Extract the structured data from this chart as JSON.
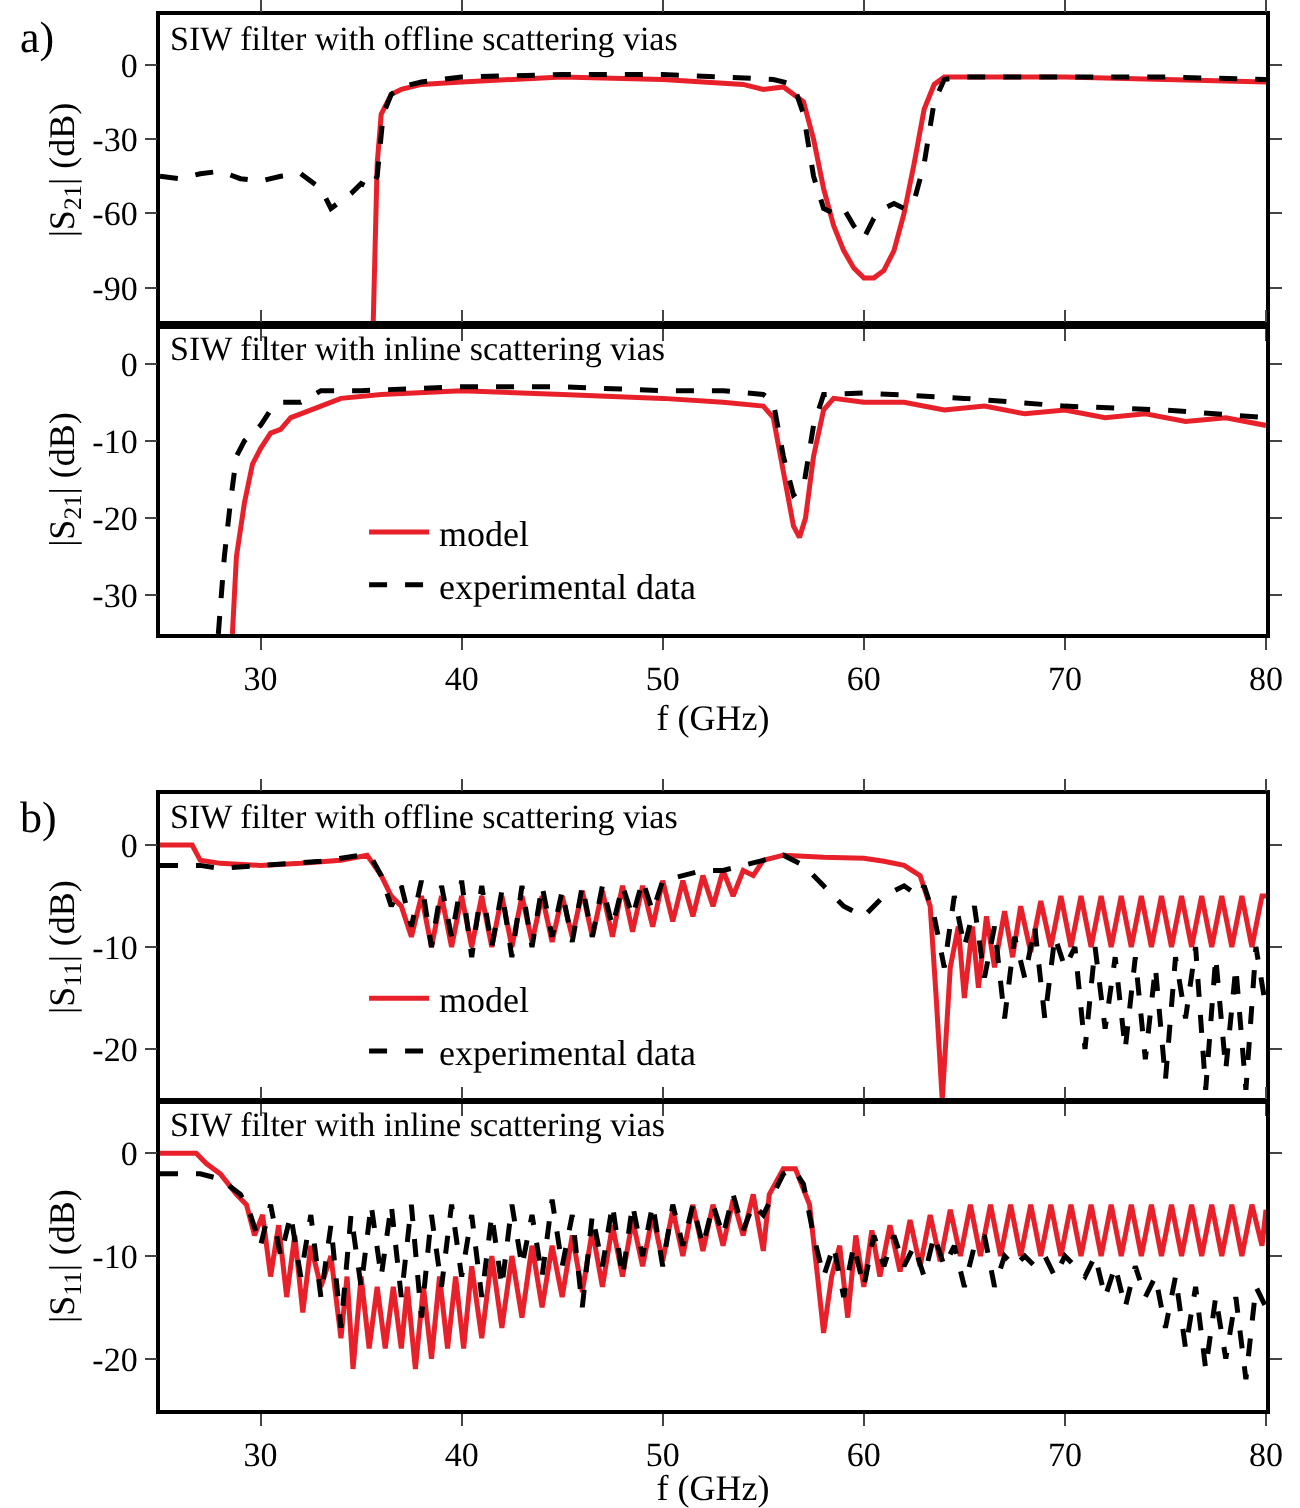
{
  "chart_data": [
    {
      "type": "line",
      "title": "SIW filter with offline scattering vias",
      "ylabel": "|S$_{21}$| (dB)",
      "annotations": [
        "a)"
      ],
      "xlim": [
        25,
        80
      ],
      "ylim": [
        -105,
        20
      ],
      "xticks": [
        30,
        40,
        50,
        60,
        70,
        80
      ],
      "yticks": [
        -90,
        -60,
        -30,
        0
      ],
      "tick_labels": "y",
      "grid": false,
      "legend": false,
      "series": [
        {
          "color": "#e8202a",
          "line_style": "solid",
          "x": [
            35.6,
            35.8,
            36.0,
            36.5,
            37,
            38,
            40,
            45,
            50,
            54,
            55,
            56,
            57,
            57.5,
            58,
            58.5,
            59,
            59.5,
            60,
            60.5,
            61,
            61.5,
            62,
            62.5,
            63,
            63.5,
            64,
            65,
            70,
            75,
            80
          ],
          "values": [
            -105,
            -40,
            -20,
            -12,
            -10,
            -8,
            -7,
            -5,
            -6,
            -8,
            -10,
            -9,
            -15,
            -30,
            -50,
            -65,
            -75,
            -82,
            -86,
            -86,
            -83,
            -75,
            -60,
            -40,
            -18,
            -8,
            -5,
            -5,
            -5,
            -6,
            -7
          ]
        },
        {
          "color": "#000000",
          "line_style": "dashed",
          "x": [
            25,
            26,
            27,
            28,
            29,
            30,
            31,
            32,
            33,
            33.5,
            34,
            34.5,
            35,
            35.5,
            35.8,
            36.1,
            36.5,
            37,
            38,
            40,
            45,
            50,
            53,
            55.5,
            56.5,
            57,
            57.5,
            58,
            58.5,
            59,
            59.5,
            60,
            60.5,
            61,
            61.5,
            62,
            62.5,
            63,
            63.5,
            64,
            65,
            70,
            75,
            80
          ],
          "values": [
            -45,
            -46,
            -44,
            -43,
            -46,
            -47,
            -45,
            -44,
            -50,
            -58,
            -55,
            -52,
            -48,
            -50,
            -45,
            -20,
            -12,
            -9,
            -7,
            -5,
            -4,
            -4,
            -5,
            -6,
            -8,
            -20,
            -45,
            -58,
            -60,
            -58,
            -65,
            -70,
            -62,
            -58,
            -56,
            -58,
            -55,
            -40,
            -15,
            -6,
            -5,
            -5,
            -5,
            -6
          ]
        }
      ]
    },
    {
      "type": "line",
      "title": "SIW filter with inline scattering vias",
      "ylabel": "|S$_{21}$| (dB)",
      "xlabel": "f (GHz)",
      "xlim": [
        25,
        80
      ],
      "ylim": [
        -35,
        5
      ],
      "xticks": [
        30,
        40,
        50,
        60,
        70,
        80
      ],
      "yticks": [
        -30,
        -20,
        -10,
        0
      ],
      "grid": false,
      "legend": "bottom left",
      "series": [
        {
          "name": "model",
          "color": "#e8202a",
          "line_style": "solid",
          "x": [
            28.6,
            28.8,
            29.2,
            29.6,
            30,
            30.5,
            31,
            31.5,
            32,
            33,
            34,
            36,
            40,
            45,
            50,
            53,
            55,
            55.5,
            56,
            56.5,
            56.8,
            57.1,
            57.5,
            58,
            58.5,
            60,
            62,
            64,
            66,
            68,
            70,
            72,
            74,
            76,
            78,
            80
          ],
          "values": [
            -35,
            -25,
            -18,
            -13,
            -11,
            -9,
            -8.5,
            -7,
            -6.5,
            -5.5,
            -4.5,
            -4,
            -3.5,
            -4,
            -4.5,
            -5,
            -5.5,
            -7,
            -14,
            -21,
            -22.5,
            -20,
            -12,
            -6,
            -4.5,
            -5,
            -5,
            -6,
            -5.5,
            -6.5,
            -6,
            -7,
            -6.5,
            -7.5,
            -7,
            -8
          ]
        },
        {
          "name": "experimental data",
          "color": "#000000",
          "line_style": "dashed",
          "x": [
            27.9,
            28.2,
            28.5,
            28.8,
            29.2,
            29.6,
            30,
            30.5,
            31,
            32,
            33,
            35,
            40,
            45,
            50,
            53,
            55,
            55.5,
            56,
            56.5,
            57,
            57.5,
            58,
            60,
            65,
            70,
            75,
            80
          ],
          "values": [
            -35,
            -25,
            -18,
            -12,
            -10,
            -9,
            -8,
            -6,
            -5,
            -5,
            -3.5,
            -3.5,
            -3,
            -3,
            -3.5,
            -3.5,
            -4,
            -5,
            -12,
            -17,
            -16,
            -8,
            -4,
            -3.8,
            -4.5,
            -5.5,
            -6,
            -7
          ]
        }
      ]
    },
    {
      "type": "line",
      "title": "SIW filter with offline scattering vias",
      "ylabel": "|S$_{11}$| (dB)",
      "annotations": [
        "b)"
      ],
      "xlim": [
        25,
        80
      ],
      "ylim": [
        -25,
        5
      ],
      "xticks": [
        30,
        40,
        50,
        60,
        70,
        80
      ],
      "yticks": [
        -20,
        -10,
        0
      ],
      "tick_labels": "y",
      "grid": false,
      "legend": "bottom left",
      "series": [
        {
          "name": "model",
          "color": "#e8202a",
          "line_style": "solid",
          "x": [
            25,
            26.6,
            27,
            28,
            30,
            32,
            34,
            35.3,
            36,
            36.5,
            37,
            37.5,
            38,
            38.5,
            39,
            39.5,
            40,
            40.5,
            41,
            41.5,
            42,
            42.5,
            43,
            43.5,
            44,
            44.5,
            45,
            45.5,
            46,
            46.5,
            47,
            47.5,
            48,
            48.5,
            49,
            49.5,
            50,
            50.5,
            51,
            51.5,
            52,
            52.5,
            53,
            53.5,
            54,
            54.5,
            55,
            56,
            58,
            60,
            61,
            62,
            62.8,
            63.3,
            63.6,
            63.9,
            64.3,
            64.7,
            65,
            65.4,
            65.7,
            66.1,
            66.5,
            67,
            67.4,
            67.8,
            68.3,
            68.8,
            69.3,
            69.8,
            70.3,
            70.8,
            71.3,
            71.8,
            72.3,
            72.8,
            73.3,
            73.8,
            74.3,
            74.8,
            75.3,
            75.8,
            76.3,
            76.8,
            77.3,
            77.8,
            78.3,
            78.8,
            79.3,
            79.8,
            80
          ],
          "values": [
            0,
            0,
            -1.5,
            -1.8,
            -2,
            -1.8,
            -1.5,
            -1,
            -3,
            -5,
            -6,
            -9,
            -5,
            -10,
            -5,
            -10,
            -5,
            -10,
            -5,
            -10,
            -5,
            -10,
            -5,
            -9.5,
            -5,
            -9.5,
            -5,
            -9,
            -4.5,
            -9,
            -4.5,
            -9,
            -4,
            -8.5,
            -4,
            -8,
            -3.5,
            -7.5,
            -3.5,
            -7,
            -3,
            -6,
            -2.5,
            -5,
            -2.5,
            -3,
            -1.5,
            -1,
            -1.2,
            -1.3,
            -1.6,
            -2,
            -3,
            -6,
            -15,
            -25,
            -12,
            -8,
            -15,
            -8,
            -14,
            -7,
            -12,
            -6.5,
            -11,
            -6,
            -10.5,
            -5.5,
            -10,
            -5,
            -10,
            -5,
            -10,
            -5,
            -10,
            -5,
            -10,
            -5,
            -10,
            -5,
            -10,
            -5,
            -10,
            -5,
            -10,
            -5,
            -10,
            -5,
            -10,
            -5,
            -5
          ]
        },
        {
          "name": "experimental data",
          "color": "#000000",
          "line_style": "dashed",
          "x": [
            25,
            27,
            28,
            30,
            33,
            35,
            35.5,
            36,
            36.5,
            37,
            37.5,
            38,
            38.5,
            39,
            39.5,
            40,
            40.5,
            41,
            41.5,
            42,
            42.5,
            43,
            43.5,
            44,
            44.5,
            45,
            45.5,
            46,
            46.5,
            47,
            47.5,
            48,
            48.5,
            49,
            49.5,
            50,
            51,
            52,
            53,
            54,
            55,
            56,
            57,
            58,
            59,
            60,
            61,
            62,
            62.7,
            63,
            63.5,
            64,
            64.5,
            65,
            65.5,
            66,
            66.5,
            67,
            67.5,
            68,
            68.5,
            69,
            69.5,
            70,
            70.5,
            71,
            71.5,
            72,
            72.5,
            73,
            73.5,
            74,
            74.5,
            75,
            75.5,
            76,
            76.5,
            77,
            77.5,
            78,
            78.5,
            79,
            79.5,
            80
          ],
          "values": [
            -2,
            -2,
            -2.3,
            -2,
            -1.6,
            -1,
            -1.2,
            -3,
            -6,
            -4,
            -8,
            -3.5,
            -10,
            -4,
            -9,
            -3.5,
            -11,
            -4,
            -10,
            -4.5,
            -11,
            -4,
            -10,
            -4,
            -9,
            -4.5,
            -9.5,
            -4,
            -9,
            -4,
            -8,
            -4,
            -7,
            -3.5,
            -6.5,
            -3.5,
            -3,
            -2.5,
            -2.5,
            -2,
            -1.5,
            -1,
            -2,
            -4,
            -6,
            -7,
            -5,
            -4,
            -5,
            -4,
            -7,
            -12,
            -5,
            -10,
            -6,
            -13,
            -8,
            -17,
            -9,
            -13,
            -8,
            -17,
            -9,
            -12,
            -10,
            -20,
            -10,
            -18,
            -11,
            -20,
            -11,
            -21,
            -12,
            -23,
            -11,
            -17,
            -10,
            -24,
            -11,
            -22,
            -12,
            -24,
            -10,
            -16
          ]
        }
      ]
    },
    {
      "type": "line",
      "title": "SIW filter with inline scattering vias",
      "ylabel": "|S$_{11}$| (dB)",
      "xlabel": "f (GHz)",
      "xlim": [
        25,
        80
      ],
      "ylim": [
        -25,
        5
      ],
      "xticks": [
        30,
        40,
        50,
        60,
        70,
        80
      ],
      "yticks": [
        -20,
        -10,
        0
      ],
      "grid": false,
      "legend": false,
      "series": [
        {
          "color": "#e8202a",
          "line_style": "solid",
          "x": [
            25,
            26.8,
            27.3,
            28,
            28.8,
            29.3,
            29.7,
            30.1,
            30.5,
            30.9,
            31.3,
            31.7,
            32.1,
            32.5,
            33,
            33.5,
            34,
            34.3,
            34.6,
            35,
            35.4,
            35.8,
            36.2,
            36.6,
            37,
            37.3,
            37.7,
            38.1,
            38.5,
            38.9,
            39.3,
            39.7,
            40.1,
            40.5,
            41,
            41.5,
            42,
            42.5,
            43,
            43.5,
            44,
            44.5,
            45,
            45.5,
            46,
            46.5,
            47,
            47.5,
            48,
            48.5,
            49,
            49.5,
            50,
            50.5,
            51,
            51.5,
            52,
            52.5,
            53,
            53.5,
            54,
            54.5,
            55,
            55.3,
            56,
            56.6,
            57.3,
            57.7,
            58,
            58.4,
            58.8,
            59.2,
            59.6,
            60,
            60.4,
            60.8,
            61.3,
            61.8,
            62.3,
            62.8,
            63.3,
            63.8,
            64.3,
            64.8,
            65.3,
            65.8,
            66.3,
            66.8,
            67.3,
            67.8,
            68.3,
            68.8,
            69.3,
            69.8,
            70.3,
            70.8,
            71.3,
            71.8,
            72.3,
            72.8,
            73.3,
            73.8,
            74.3,
            74.8,
            75.3,
            75.8,
            76.3,
            76.8,
            77.3,
            77.8,
            78.3,
            78.8,
            79.3,
            79.8,
            80
          ],
          "values": [
            0,
            0,
            -1,
            -2,
            -4,
            -5,
            -8,
            -6,
            -12,
            -7,
            -14,
            -8,
            -15.5,
            -9,
            -13,
            -10,
            -18,
            -12,
            -21,
            -12,
            -19,
            -13,
            -19,
            -13,
            -19,
            -13,
            -21,
            -13,
            -20,
            -12,
            -19,
            -12,
            -19,
            -11,
            -18,
            -10,
            -17,
            -10,
            -16,
            -9,
            -15,
            -9,
            -14,
            -8,
            -13.5,
            -7.5,
            -13,
            -7,
            -12,
            -6.5,
            -11,
            -6,
            -10.5,
            -5.5,
            -10,
            -5,
            -9.5,
            -5,
            -9,
            -4.5,
            -8,
            -4,
            -9.5,
            -4,
            -1.5,
            -1.5,
            -5,
            -12,
            -17.5,
            -12,
            -9,
            -16,
            -8,
            -13,
            -7.5,
            -12,
            -7,
            -11.5,
            -6.5,
            -11,
            -6,
            -10.5,
            -5.5,
            -10,
            -5,
            -10,
            -5,
            -10,
            -5,
            -10,
            -5,
            -10,
            -5,
            -10,
            -5,
            -10,
            -5,
            -10,
            -5,
            -10,
            -5,
            -10,
            -5,
            -10,
            -5,
            -10,
            -5,
            -10,
            -5,
            -10,
            -5,
            -10,
            -5,
            -9,
            -5.5
          ]
        },
        {
          "color": "#000000",
          "line_style": "dashed",
          "x": [
            25,
            27,
            28,
            29,
            29.5,
            30,
            30.5,
            31,
            31.5,
            32,
            32.5,
            33,
            33.5,
            34,
            34.5,
            35,
            35.5,
            36,
            36.5,
            37,
            37.5,
            38,
            38.5,
            39,
            39.5,
            40,
            40.5,
            41,
            41.5,
            42,
            42.5,
            43,
            43.5,
            44,
            44.5,
            45,
            45.5,
            46,
            46.5,
            47,
            47.5,
            48,
            48.5,
            49,
            49.5,
            50,
            50.5,
            51,
            51.5,
            52,
            52.5,
            53,
            53.5,
            54,
            54.5,
            55,
            56,
            56.5,
            57,
            57.5,
            58,
            58.5,
            59,
            59.5,
            60,
            60.5,
            61,
            61.5,
            62,
            62.5,
            63,
            63.5,
            64,
            64.5,
            65,
            65.5,
            66,
            66.5,
            67,
            67.5,
            68,
            68.5,
            69,
            69.5,
            70,
            70.5,
            71,
            71.5,
            72,
            72.5,
            73,
            73.5,
            74,
            74.5,
            75,
            75.5,
            76,
            76.5,
            77,
            77.5,
            78,
            78.5,
            79,
            79.5,
            80
          ],
          "values": [
            -2,
            -2,
            -2.5,
            -4,
            -6,
            -9,
            -5,
            -10,
            -6,
            -12,
            -6,
            -14,
            -7,
            -17,
            -6,
            -13,
            -5,
            -12,
            -5,
            -14,
            -5,
            -16,
            -6,
            -13,
            -5,
            -12,
            -6,
            -14,
            -6,
            -13,
            -5,
            -11,
            -6,
            -12,
            -4.5,
            -11,
            -6,
            -15,
            -6,
            -11,
            -5,
            -12,
            -5,
            -10,
            -5,
            -11,
            -5,
            -9,
            -5,
            -9,
            -5,
            -8,
            -4,
            -7.5,
            -5,
            -6,
            -2,
            -1.5,
            -3,
            -8,
            -12,
            -9,
            -14,
            -9,
            -13,
            -8,
            -11,
            -8,
            -11,
            -9,
            -12,
            -8,
            -11,
            -9,
            -13,
            -9,
            -8,
            -13,
            -10,
            -11,
            -10,
            -11,
            -10,
            -12,
            -10,
            -11,
            -12,
            -10,
            -14,
            -11,
            -15,
            -11,
            -14,
            -12,
            -17,
            -12,
            -19,
            -13,
            -21,
            -14,
            -20,
            -14,
            -22,
            -13,
            -15
          ]
        }
      ]
    }
  ]
}
